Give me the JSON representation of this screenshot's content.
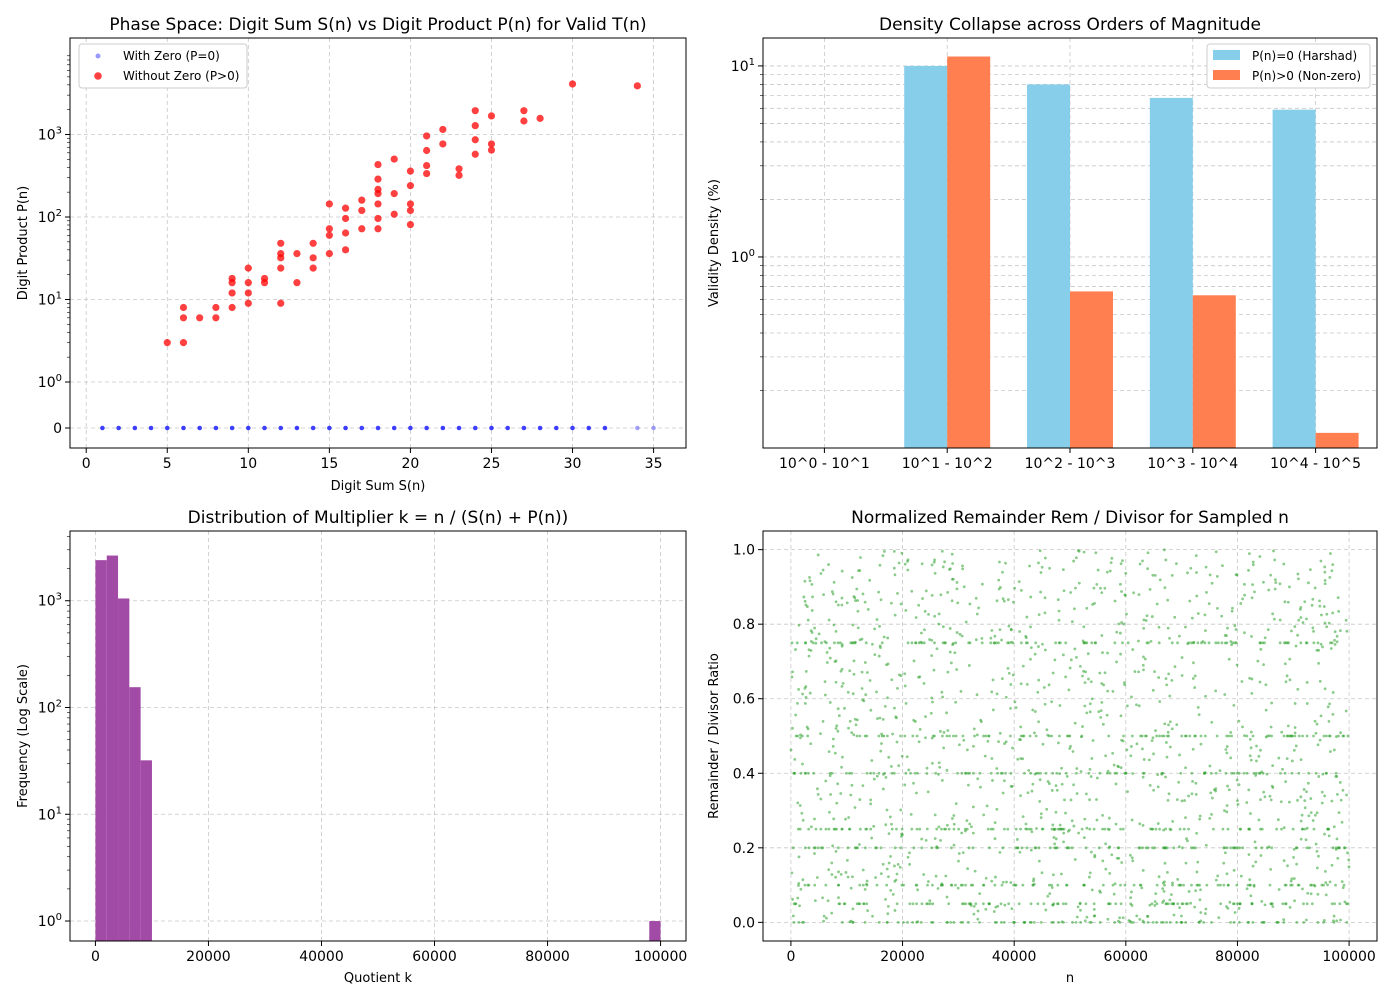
{
  "chart_data": [
    {
      "type": "scatter",
      "title": "Phase Space: Digit Sum S(n) vs Digit Product P(n) for Valid T(n)",
      "xlabel": "Digit Sum S(n)",
      "ylabel": "Digit Product P(n)",
      "yscale": "symlog",
      "xlim": [
        -1,
        37
      ],
      "xticks": [
        0,
        5,
        10,
        15,
        20,
        25,
        30,
        35
      ],
      "yticks": [
        {
          "label": "0"
        },
        {
          "label": "10",
          "exp": "0"
        },
        {
          "label": "10",
          "exp": "1"
        },
        {
          "label": "10",
          "exp": "2"
        },
        {
          "label": "10",
          "exp": "3"
        }
      ],
      "grid": true,
      "legend": "top-left",
      "series": [
        {
          "name": "With Zero (P=0)",
          "color": "#0000ff",
          "x": [
            1,
            2,
            3,
            4,
            5,
            6,
            7,
            8,
            9,
            10,
            11,
            12,
            13,
            14,
            15,
            16,
            17,
            18,
            19,
            20,
            21,
            22,
            23,
            24,
            25,
            26,
            27,
            28,
            29,
            30,
            31,
            32,
            34,
            35
          ],
          "y": [
            0,
            0,
            0,
            0,
            0,
            0,
            0,
            0,
            0,
            0,
            0,
            0,
            0,
            0,
            0,
            0,
            0,
            0,
            0,
            0,
            0,
            0,
            0,
            0,
            0,
            0,
            0,
            0,
            0,
            0,
            0,
            0,
            0,
            0
          ]
        },
        {
          "name": "Without Zero (P>0)",
          "color": "#ff0000",
          "points": [
            [
              5,
              3
            ],
            [
              6,
              3
            ],
            [
              6,
              6
            ],
            [
              6,
              8
            ],
            [
              7,
              6
            ],
            [
              8,
              6
            ],
            [
              8,
              8
            ],
            [
              9,
              8
            ],
            [
              9,
              12
            ],
            [
              9,
              16
            ],
            [
              9,
              18
            ],
            [
              10,
              9
            ],
            [
              10,
              12
            ],
            [
              10,
              16
            ],
            [
              10,
              24
            ],
            [
              11,
              16
            ],
            [
              11,
              18
            ],
            [
              12,
              9
            ],
            [
              12,
              24
            ],
            [
              12,
              32
            ],
            [
              12,
              36
            ],
            [
              12,
              48
            ],
            [
              13,
              16
            ],
            [
              13,
              36
            ],
            [
              14,
              24
            ],
            [
              14,
              32
            ],
            [
              14,
              48
            ],
            [
              15,
              36
            ],
            [
              15,
              60
            ],
            [
              15,
              72
            ],
            [
              15,
              144
            ],
            [
              16,
              40
            ],
            [
              16,
              64
            ],
            [
              16,
              96
            ],
            [
              16,
              128
            ],
            [
              17,
              72
            ],
            [
              17,
              120
            ],
            [
              17,
              160
            ],
            [
              18,
              72
            ],
            [
              18,
              96
            ],
            [
              18,
              144
            ],
            [
              18,
              192
            ],
            [
              18,
              216
            ],
            [
              18,
              288
            ],
            [
              18,
              432
            ],
            [
              19,
              108
            ],
            [
              19,
              192
            ],
            [
              19,
              504
            ],
            [
              20,
              81
            ],
            [
              20,
              120
            ],
            [
              20,
              144
            ],
            [
              20,
              240
            ],
            [
              20,
              360
            ],
            [
              21,
              336
            ],
            [
              21,
              420
            ],
            [
              21,
              640
            ],
            [
              21,
              960
            ],
            [
              22,
              768
            ],
            [
              22,
              1152
            ],
            [
              23,
              320
            ],
            [
              23,
              384
            ],
            [
              24,
              576
            ],
            [
              24,
              864
            ],
            [
              24,
              1280
            ],
            [
              24,
              1944
            ],
            [
              25,
              648
            ],
            [
              25,
              768
            ],
            [
              25,
              1680
            ],
            [
              27,
              1458
            ],
            [
              27,
              1944
            ],
            [
              28,
              1568
            ],
            [
              30,
              4096
            ],
            [
              34,
              3888
            ]
          ]
        }
      ]
    },
    {
      "type": "bar",
      "title": "Density Collapse across Orders of Magnitude",
      "xlabel": "",
      "ylabel": "Validity Density (%)",
      "yscale": "log",
      "ylim": [
        0.1,
        14
      ],
      "categories": [
        "10^0 - 10^1",
        "10^1 - 10^2",
        "10^2 - 10^3",
        "10^3 - 10^4",
        "10^4 - 10^5"
      ],
      "yticks": [
        {
          "label": "10",
          "exp": "0"
        },
        {
          "label": "10",
          "exp": "1"
        }
      ],
      "grid": true,
      "legend": "top-right",
      "series": [
        {
          "name": "P(n)=0 (Harshad)",
          "color": "#87ceeb",
          "values": [
            0,
            10.0,
            8.0,
            6.8,
            5.9
          ]
        },
        {
          "name": "P(n)>0 (Non-zero)",
          "color": "#ff7f50",
          "values": [
            0,
            11.2,
            0.66,
            0.63,
            0.12
          ]
        }
      ]
    },
    {
      "type": "bar",
      "subtype": "histogram",
      "title": "Distribution of Multiplier k = n / (S(n) + P(n))",
      "xlabel": "Quotient k",
      "ylabel": "Frequency (Log Scale)",
      "yscale": "log",
      "xlim": [
        -4500,
        104500
      ],
      "xticks": [
        0,
        20000,
        40000,
        60000,
        80000,
        100000
      ],
      "yticks": [
        {
          "label": "10",
          "exp": "0"
        },
        {
          "label": "10",
          "exp": "1"
        },
        {
          "label": "10",
          "exp": "2"
        },
        {
          "label": "10",
          "exp": "3"
        }
      ],
      "grid": true,
      "color": "#a24ba6",
      "bins": [
        {
          "x0": 0,
          "x1": 2000,
          "value": 2400
        },
        {
          "x0": 2000,
          "x1": 4000,
          "value": 2650
        },
        {
          "x0": 4000,
          "x1": 6000,
          "value": 1050
        },
        {
          "x0": 6000,
          "x1": 8000,
          "value": 155
        },
        {
          "x0": 8000,
          "x1": 10000,
          "value": 32
        },
        {
          "x0": 98000,
          "x1": 100000,
          "value": 1
        }
      ]
    },
    {
      "type": "scatter",
      "title": "Normalized Remainder Rem / Divisor for Sampled n",
      "xlabel": "n",
      "ylabel": "Remainder / Divisor Ratio",
      "xlim": [
        -5000,
        105000
      ],
      "ylim": [
        -0.05,
        1.05
      ],
      "xticks": [
        0,
        20000,
        40000,
        60000,
        80000,
        100000
      ],
      "yticks": [
        0.0,
        0.2,
        0.4,
        0.6,
        0.8,
        1.0
      ],
      "grid": true,
      "color": "#2ca02c",
      "bands": [
        0,
        0.05,
        0.1,
        0.2,
        0.25,
        0.4,
        0.5,
        0.75
      ],
      "band_points_per_level": 90,
      "random_points": 1300
    }
  ]
}
